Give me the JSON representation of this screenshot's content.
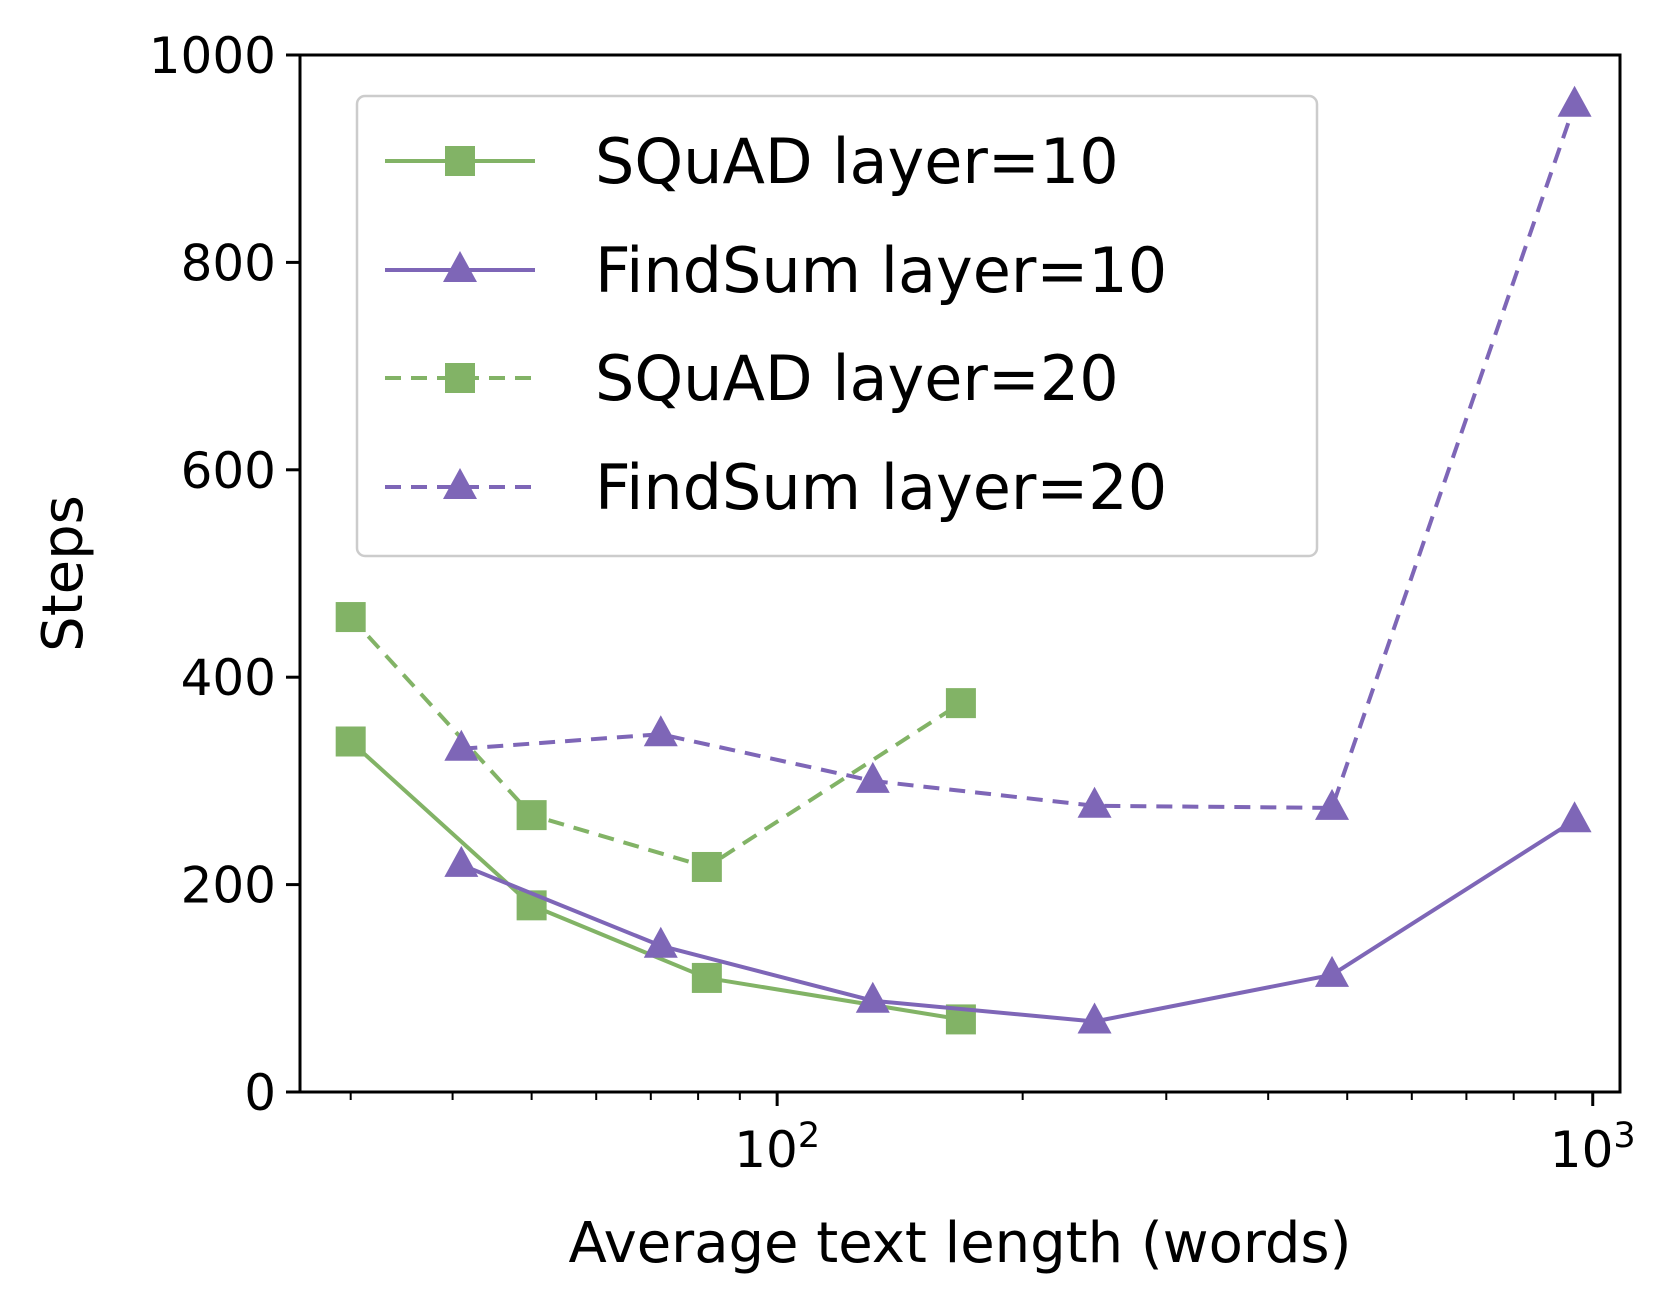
{
  "chart_data": {
    "type": "line",
    "xlabel": "Average text length (words)",
    "ylabel": "Steps",
    "xscale": "log",
    "xlim": [
      26,
      1080
    ],
    "ylim": [
      0,
      1000
    ],
    "yticks": [
      0,
      200,
      400,
      600,
      800,
      1000
    ],
    "xticks": [
      {
        "value": 100,
        "base": "10",
        "exp": "2"
      },
      {
        "value": 1000,
        "base": "10",
        "exp": "3"
      }
    ],
    "grid": false,
    "legend_position": "upper-left",
    "series": [
      {
        "name": "SQuAD layer=10",
        "color": "#82b366",
        "linestyle": "solid",
        "marker": "square",
        "x": [
          30,
          50,
          82,
          168
        ],
        "y": [
          338,
          180,
          110,
          70
        ]
      },
      {
        "name": "FindSum layer=10",
        "color": "#7e66b7",
        "linestyle": "solid",
        "marker": "triangle",
        "x": [
          41,
          72,
          131,
          245,
          479,
          950
        ],
        "y": [
          219,
          141,
          88,
          68,
          113,
          262
        ]
      },
      {
        "name": "SQuAD layer=20",
        "color": "#82b366",
        "linestyle": "dashed",
        "marker": "square",
        "x": [
          30,
          50,
          82,
          168
        ],
        "y": [
          458,
          267,
          217,
          375
        ]
      },
      {
        "name": "FindSum layer=20",
        "color": "#7e66b7",
        "linestyle": "dashed",
        "marker": "triangle",
        "x": [
          41,
          72,
          131,
          245,
          479,
          950
        ],
        "y": [
          331,
          345,
          300,
          276,
          274,
          952
        ]
      }
    ]
  }
}
